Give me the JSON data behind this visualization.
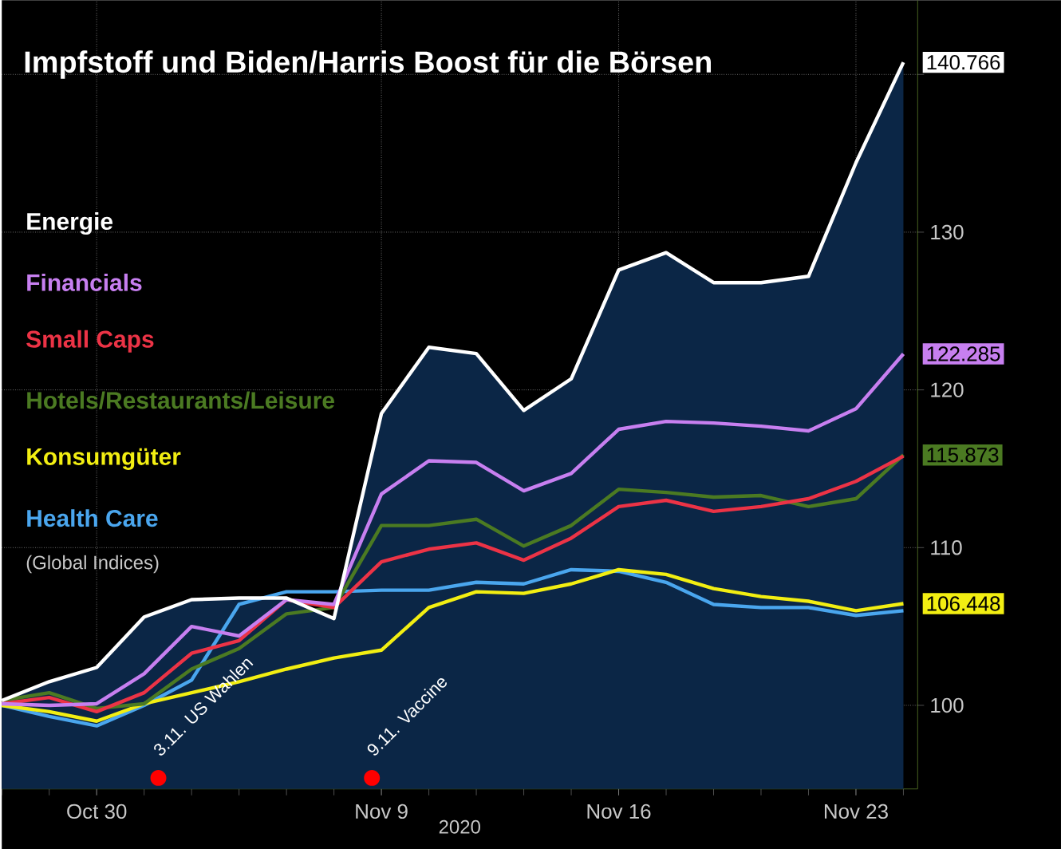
{
  "chart_data": {
    "type": "line",
    "title": "Impfstoff und Biden/Harris Boost für die Börsen",
    "xlabel": "2020",
    "categories": [
      null,
      null,
      "Oct 30",
      null,
      null,
      null,
      null,
      null,
      "Nov 9",
      null,
      null,
      null,
      null,
      "Nov 16",
      null,
      null,
      null,
      null,
      "Nov 23",
      null
    ],
    "series": [
      {
        "name": "Energie",
        "type": "area",
        "color": "#ffffff",
        "values": [
          100.3,
          101.5,
          102.4,
          105.6,
          106.7,
          106.8,
          106.8,
          105.5,
          118.5,
          122.7,
          122.3,
          118.7,
          120.7,
          127.6,
          128.7,
          126.8,
          126.8,
          127.2,
          134.4,
          140.766
        ],
        "value_labels": [
          null,
          null,
          null,
          null,
          null,
          null,
          null,
          null,
          null,
          null,
          null,
          null,
          null,
          null,
          null,
          null,
          null,
          null,
          null,
          "140.766"
        ]
      },
      {
        "name": "Financials",
        "color": "#c77ff0",
        "values": [
          100.1,
          100,
          100.1,
          102,
          105,
          104.4,
          106.7,
          106.4,
          113.4,
          115.5,
          115.4,
          113.6,
          114.7,
          117.5,
          118,
          117.9,
          117.7,
          117.4,
          118.8,
          122.285
        ],
        "value_labels": [
          null,
          null,
          null,
          null,
          null,
          null,
          null,
          null,
          null,
          null,
          null,
          null,
          null,
          null,
          null,
          null,
          null,
          null,
          null,
          "122.285"
        ]
      },
      {
        "name": "Small Caps",
        "color": "#ec3346",
        "values": [
          100.1,
          100.5,
          99.6,
          100.8,
          103.3,
          104.1,
          106.7,
          106.2,
          109.1,
          109.9,
          110.3,
          109.2,
          110.6,
          112.6,
          113,
          112.3,
          112.6,
          113.1,
          114.2,
          115.8
        ]
      },
      {
        "name": "Hotels/Restaurants/Leisure",
        "color": "#4b7a22",
        "values": [
          100.3,
          100.8,
          99.8,
          100.1,
          102.3,
          103.6,
          105.8,
          106.2,
          111.4,
          111.4,
          111.8,
          110.1,
          111.4,
          113.7,
          113.5,
          113.2,
          113.3,
          112.6,
          113.1,
          115.873
        ],
        "value_labels": [
          null,
          null,
          null,
          null,
          null,
          null,
          null,
          null,
          null,
          null,
          null,
          null,
          null,
          null,
          null,
          null,
          null,
          null,
          null,
          "115.873"
        ]
      },
      {
        "name": "Konsumgüter",
        "color": "#f2ee12",
        "values": [
          100,
          99.6,
          99,
          100.1,
          100.8,
          101.5,
          102.3,
          103,
          103.5,
          106.2,
          107.2,
          107.1,
          107.7,
          108.6,
          108.3,
          107.4,
          106.9,
          106.6,
          106,
          106.448
        ],
        "value_labels": [
          null,
          null,
          null,
          null,
          null,
          null,
          null,
          null,
          null,
          null,
          null,
          null,
          null,
          null,
          null,
          null,
          null,
          null,
          null,
          "106.448"
        ]
      },
      {
        "name": "Health Care",
        "color": "#4aa6ee",
        "values": [
          100,
          99.3,
          98.7,
          100,
          101.6,
          106.4,
          107.2,
          107.2,
          107.3,
          107.3,
          107.8,
          107.7,
          108.6,
          108.5,
          107.8,
          106.4,
          106.2,
          106.2,
          105.7,
          106
        ]
      }
    ],
    "annotations": [
      "(Global Indices)",
      "3.11. US Wahlen",
      "9.11. Vaccine"
    ],
    "ylim": [
      94.7,
      144.7
    ],
    "yticks": [
      100,
      110,
      120,
      130,
      {
        "value": 140,
        "label": null
      }
    ],
    "grid": true,
    "legend": "top left"
  }
}
